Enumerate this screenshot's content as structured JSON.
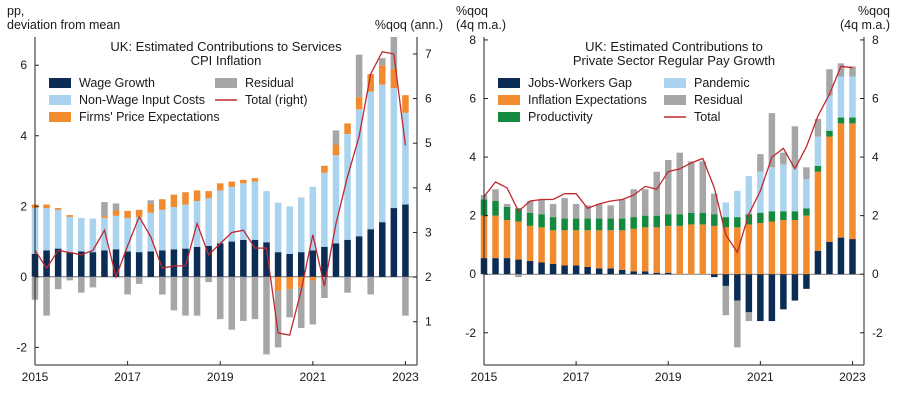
{
  "chart_data": [
    {
      "type": "bar",
      "title": "UK: Estimated Contributions to Services CPI Inflation",
      "title_lines": [
        "UK: Estimated Contributions to Services",
        "CPI Inflation"
      ],
      "left_unit_lines": [
        "pp,",
        "deviation from mean"
      ],
      "right_unit_lines": [
        "%qoq (ann.)"
      ],
      "ylim": [
        -2.5,
        6.8
      ],
      "y2lim": [
        0.03,
        7.38
      ],
      "yticks": [
        -2,
        0,
        2,
        4,
        6
      ],
      "y2ticks": [
        1,
        2,
        3,
        4,
        5,
        6,
        7
      ],
      "xlim": [
        2015.0,
        2023.25
      ],
      "xticks": [
        2015,
        2017,
        2019,
        2021,
        2023
      ],
      "xticklabels": [
        "2015",
        "2017",
        "2019",
        "2021",
        "2023"
      ],
      "stacking": "positive and negative parts stacked separately",
      "x": [
        2015.0,
        2015.25,
        2015.5,
        2015.75,
        2016.0,
        2016.25,
        2016.5,
        2016.75,
        2017.0,
        2017.25,
        2017.5,
        2017.75,
        2018.0,
        2018.25,
        2018.5,
        2018.75,
        2019.0,
        2019.25,
        2019.5,
        2019.75,
        2020.0,
        2020.25,
        2020.5,
        2020.75,
        2021.0,
        2021.25,
        2021.5,
        2021.75,
        2022.0,
        2022.25,
        2022.5,
        2022.75,
        2023.0
      ],
      "series": [
        {
          "name": "Wage Growth",
          "color": "#0b2c55",
          "values": [
            0.65,
            0.75,
            0.8,
            0.7,
            0.72,
            0.7,
            0.75,
            0.78,
            0.72,
            0.7,
            0.72,
            0.75,
            0.78,
            0.8,
            0.85,
            0.88,
            0.95,
            1.0,
            1.05,
            1.05,
            0.98,
            0.7,
            0.65,
            0.7,
            0.75,
            0.85,
            0.95,
            1.05,
            1.15,
            1.35,
            1.55,
            1.95,
            2.05
          ]
        },
        {
          "name": "Non-Wage Input Costs",
          "color": "#a9d3ee",
          "values": [
            1.3,
            1.2,
            1.1,
            1.0,
            0.95,
            0.95,
            0.92,
            0.95,
            0.95,
            1.0,
            1.1,
            1.15,
            1.2,
            1.25,
            1.3,
            1.35,
            1.5,
            1.55,
            1.6,
            1.65,
            1.45,
            1.4,
            1.35,
            1.55,
            1.8,
            2.1,
            2.5,
            3.0,
            3.6,
            3.9,
            3.9,
            3.4,
            2.6
          ]
        },
        {
          "name": "Firms' Price Expectations",
          "color": "#f28a2e",
          "values": [
            0.1,
            0.1,
            0.05,
            0.05,
            0.0,
            0.0,
            0.05,
            0.15,
            0.2,
            0.2,
            0.25,
            0.3,
            0.35,
            0.35,
            0.3,
            0.2,
            0.2,
            0.15,
            0.1,
            0.1,
            0.0,
            -0.4,
            -0.35,
            -0.3,
            -0.1,
            0.2,
            0.3,
            0.3,
            0.35,
            0.5,
            0.55,
            0.55,
            0.5
          ]
        },
        {
          "name": "Residual",
          "color": "#a6a6a6",
          "values": [
            -0.65,
            -1.1,
            -0.35,
            -0.1,
            -0.45,
            -0.3,
            0.4,
            0.2,
            -0.5,
            -0.2,
            0.1,
            -0.5,
            -0.95,
            -1.1,
            -1.1,
            -0.15,
            -1.2,
            -1.5,
            -1.25,
            -1.2,
            -2.2,
            -1.6,
            -0.8,
            -1.15,
            -1.25,
            -0.6,
            0.4,
            -0.45,
            1.2,
            -0.5,
            0.2,
            0.9,
            -1.1
          ]
        },
        {
          "name": "Total (right)",
          "color": "#c0282e",
          "values": [
            2.6,
            2.2,
            2.6,
            2.55,
            2.5,
            2.6,
            3.05,
            2.0,
            2.7,
            3.35,
            2.9,
            2.2,
            2.25,
            2.25,
            3.2,
            2.5,
            2.75,
            3.0,
            3.05,
            2.65,
            2.65,
            0.75,
            0.7,
            1.7,
            2.95,
            1.8,
            3.2,
            4.25,
            5.15,
            6.55,
            7.05,
            7.0,
            4.95
          ]
        }
      ],
      "legend": {
        "placement": "top-left",
        "columns": [
          [
            {
              "label": "Wage Growth",
              "kind": "box",
              "color": "#0b2c55"
            },
            {
              "label": "Non-Wage Input Costs",
              "kind": "box",
              "color": "#a9d3ee"
            },
            {
              "label": "Firms' Price Expectations",
              "kind": "box",
              "color": "#f28a2e"
            }
          ],
          [
            {
              "label": "Residual",
              "kind": "box",
              "color": "#a6a6a6"
            },
            {
              "label": "Total (right)",
              "kind": "line",
              "color": "#c0282e"
            }
          ]
        ]
      }
    },
    {
      "type": "bar",
      "title": "UK: Estimated Contributions to Private Sector Regular Pay Growth",
      "title_lines": [
        "UK: Estimated Contributions to",
        "Private Sector Regular Pay Growth"
      ],
      "left_unit_lines": [
        "%qoq",
        "(4q m.a.)"
      ],
      "right_unit_lines": [
        "%qoq",
        "(4q m.a.)"
      ],
      "ylim": [
        -3.1,
        8.1
      ],
      "y2lim": [
        -3.1,
        8.1
      ],
      "yticks": [
        -2,
        0,
        2,
        4,
        6,
        8
      ],
      "y2ticks": [
        -2,
        0,
        2,
        4,
        6,
        8
      ],
      "xlim": [
        2015.0,
        2023.25
      ],
      "xticks": [
        2015,
        2017,
        2019,
        2021,
        2023
      ],
      "xticklabels": [
        "2015",
        "2017",
        "2019",
        "2021",
        "2023"
      ],
      "stacking": "positive and negative parts stacked separately",
      "x": [
        2015.0,
        2015.25,
        2015.5,
        2015.75,
        2016.0,
        2016.25,
        2016.5,
        2016.75,
        2017.0,
        2017.25,
        2017.5,
        2017.75,
        2018.0,
        2018.25,
        2018.5,
        2018.75,
        2019.0,
        2019.25,
        2019.5,
        2019.75,
        2020.0,
        2020.25,
        2020.5,
        2020.75,
        2021.0,
        2021.25,
        2021.5,
        2021.75,
        2022.0,
        2022.25,
        2022.5,
        2022.75,
        2023.0
      ],
      "series": [
        {
          "name": "Jobs-Workers Gap",
          "color": "#0b2c55",
          "values": [
            0.55,
            0.55,
            0.55,
            0.5,
            0.45,
            0.4,
            0.35,
            0.3,
            0.3,
            0.25,
            0.2,
            0.2,
            0.15,
            0.1,
            0.1,
            0.05,
            0.05,
            0.0,
            0.0,
            0.0,
            -0.1,
            -0.4,
            -0.9,
            -1.3,
            -1.6,
            -1.6,
            -1.2,
            -0.9,
            -0.5,
            0.8,
            1.1,
            1.25,
            1.2
          ]
        },
        {
          "name": "Inflation Expectations",
          "color": "#f28a2e",
          "values": [
            1.45,
            1.45,
            1.3,
            1.3,
            1.2,
            1.2,
            1.15,
            1.2,
            1.2,
            1.25,
            1.3,
            1.3,
            1.35,
            1.45,
            1.5,
            1.55,
            1.6,
            1.65,
            1.7,
            1.7,
            1.65,
            1.6,
            1.6,
            1.7,
            1.75,
            1.8,
            1.85,
            1.85,
            2.0,
            2.7,
            3.6,
            3.9,
            3.95
          ]
        },
        {
          "name": "Productivity",
          "color": "#148a3e",
          "values": [
            0.55,
            0.5,
            0.45,
            0.45,
            0.45,
            0.45,
            0.45,
            0.4,
            0.4,
            0.4,
            0.4,
            0.4,
            0.4,
            0.4,
            0.4,
            0.4,
            0.4,
            0.4,
            0.4,
            0.4,
            0.4,
            0.35,
            0.35,
            0.35,
            0.35,
            0.35,
            0.3,
            0.3,
            0.25,
            0.2,
            0.2,
            0.2,
            0.2
          ]
        },
        {
          "name": "Pandemic",
          "color": "#a9d3ee",
          "values": [
            0.0,
            0.0,
            0.0,
            0.0,
            0.0,
            0.0,
            0.0,
            0.0,
            0.0,
            0.0,
            0.0,
            0.0,
            0.0,
            0.0,
            0.0,
            0.0,
            0.0,
            0.0,
            0.0,
            0.0,
            0.0,
            0.5,
            0.9,
            1.3,
            1.4,
            1.5,
            1.6,
            1.5,
            1.0,
            1.0,
            1.2,
            1.4,
            1.4
          ]
        },
        {
          "name": "Residual",
          "color": "#a6a6a6",
          "values": [
            0.15,
            0.4,
            0.1,
            -0.1,
            0.4,
            0.5,
            0.45,
            0.7,
            0.5,
            0.45,
            0.5,
            0.45,
            0.65,
            0.95,
            0.9,
            1.5,
            1.85,
            2.1,
            1.75,
            1.75,
            0.7,
            -1.0,
            -1.6,
            -0.3,
            0.6,
            1.85,
            0.4,
            1.4,
            0.4,
            0.6,
            0.9,
            0.45,
            0.35
          ]
        },
        {
          "name": "Total",
          "color": "#c0282e",
          "values": [
            2.65,
            3.15,
            2.95,
            2.15,
            2.5,
            2.55,
            2.55,
            2.75,
            2.75,
            2.25,
            2.4,
            2.5,
            2.55,
            2.7,
            3.0,
            2.9,
            3.5,
            3.6,
            3.8,
            3.95,
            2.95,
            1.35,
            0.75,
            2.05,
            2.85,
            4.0,
            4.3,
            3.6,
            4.35,
            5.4,
            6.15,
            7.1,
            7.05
          ]
        }
      ],
      "legend": {
        "placement": "top-left",
        "columns": [
          [
            {
              "label": "Jobs-Workers Gap",
              "kind": "box",
              "color": "#0b2c55"
            },
            {
              "label": "Inflation Expectations",
              "kind": "box",
              "color": "#f28a2e"
            },
            {
              "label": "Productivity",
              "kind": "box",
              "color": "#148a3e"
            }
          ],
          [
            {
              "label": "Pandemic",
              "kind": "box",
              "color": "#a9d3ee"
            },
            {
              "label": "Residual",
              "kind": "box",
              "color": "#a6a6a6"
            },
            {
              "label": "Total",
              "kind": "line",
              "color": "#c0282e"
            }
          ]
        ]
      }
    }
  ]
}
